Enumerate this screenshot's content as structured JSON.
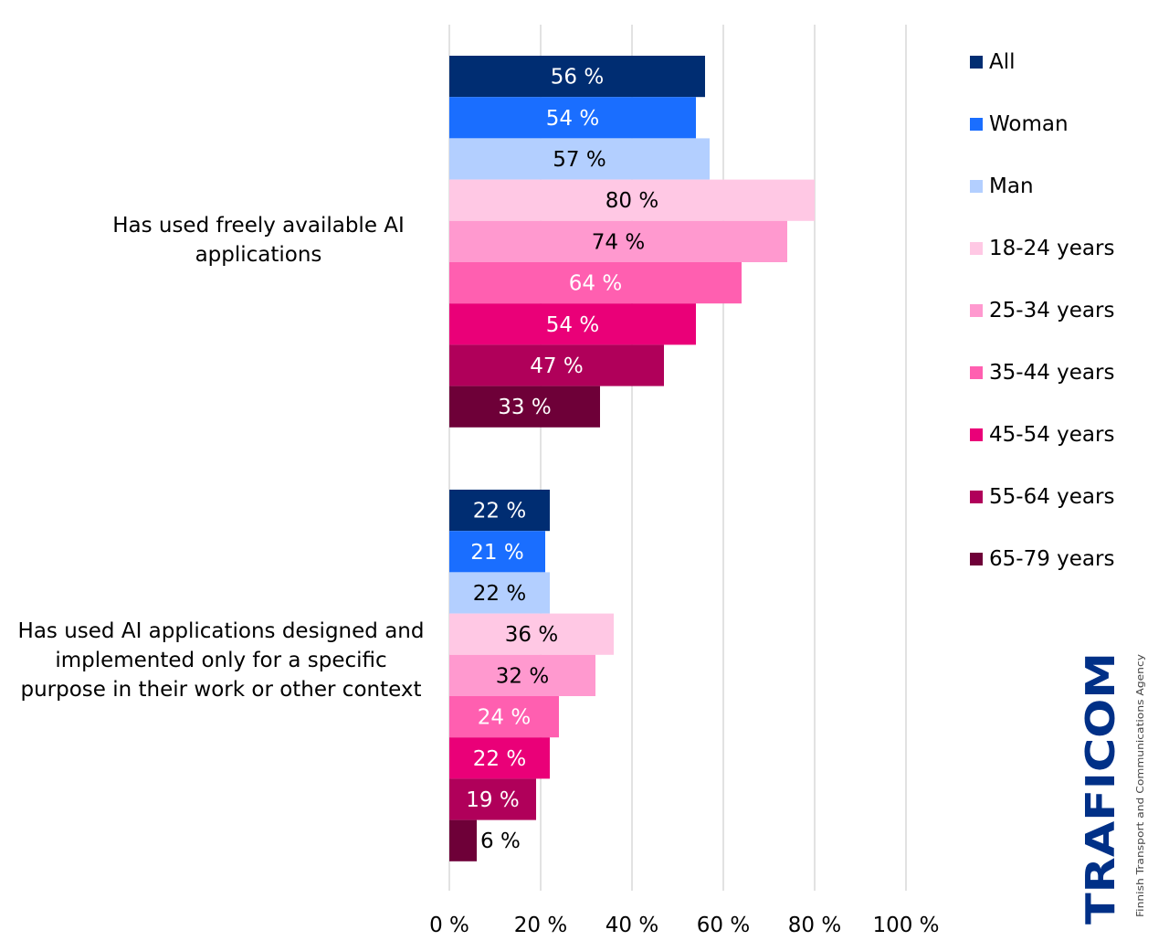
{
  "chart_data": {
    "type": "bar",
    "orientation": "horizontal",
    "categories": [
      "Has used freely available AI applications",
      "Has used AI applications designed and implemented only for a specific purpose in their work or other context"
    ],
    "series": [
      {
        "name": "All",
        "color": "#002d72",
        "values": [
          56,
          22
        ]
      },
      {
        "name": "Woman",
        "color": "#1a6eff",
        "values": [
          54,
          21
        ]
      },
      {
        "name": "Man",
        "color": "#b3cfff",
        "values": [
          57,
          22
        ]
      },
      {
        "name": "18-24 years",
        "color": "#ffc8e4",
        "values": [
          80,
          36
        ]
      },
      {
        "name": "25-34 years",
        "color": "#ff99cf",
        "values": [
          74,
          32
        ]
      },
      {
        "name": "35-44 years",
        "color": "#ff5fb0",
        "values": [
          64,
          24
        ]
      },
      {
        "name": "45-54 years",
        "color": "#ea0078",
        "values": [
          54,
          22
        ]
      },
      {
        "name": "55-64 years",
        "color": "#b0005a",
        "values": [
          47,
          19
        ]
      },
      {
        "name": "65-79 years",
        "color": "#6e0038",
        "values": [
          33,
          6
        ]
      }
    ],
    "value_suffix": " %",
    "x_ticks": [
      "0 %",
      "20 %",
      "40 %",
      "60 %",
      "80 %",
      "100 %"
    ],
    "xlim": [
      0,
      100
    ],
    "grid": true,
    "legend_position": "right",
    "xlabel": "",
    "ylabel": "",
    "title": ""
  },
  "logo": {
    "text": "TRAFICOM",
    "tagline": "Finnish Transport and Communications Agency",
    "color": "#003087"
  }
}
